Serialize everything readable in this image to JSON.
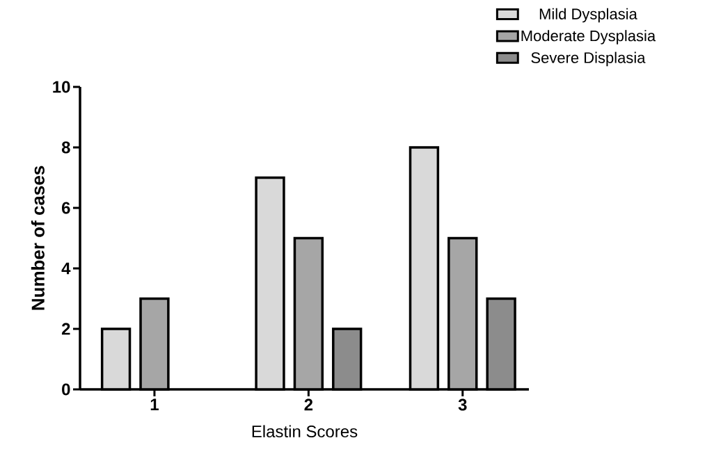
{
  "chart_data": {
    "type": "bar",
    "xlabel": "Elastin Scores",
    "ylabel": "Number of cases",
    "categories": [
      "1",
      "2",
      "3"
    ],
    "series": [
      {
        "name": "Mild Dysplasia",
        "color": "#d9d9d9",
        "values": [
          2,
          7,
          8
        ]
      },
      {
        "name": "Moderate Dysplasia",
        "color": "#a6a6a6",
        "values": [
          3,
          5,
          5
        ]
      },
      {
        "name": "Severe Displasia",
        "color": "#8c8c8c",
        "values": [
          null,
          2,
          3
        ]
      }
    ],
    "ylim": [
      0,
      10
    ],
    "yticks": [
      0,
      2,
      4,
      6,
      8,
      10
    ],
    "grid": false,
    "legend": "top right"
  }
}
